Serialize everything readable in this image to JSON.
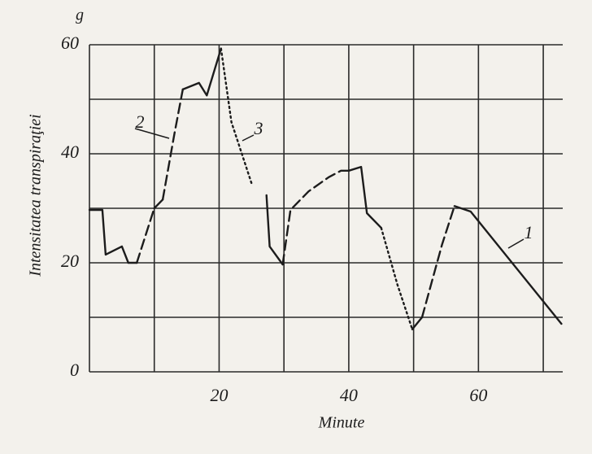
{
  "chart_data": {
    "type": "line",
    "y_unit": "g",
    "y_label": "Intensitatea transpiraţiei",
    "x_label": "Minute",
    "xlim": [
      0,
      73
    ],
    "ylim": [
      0,
      60
    ],
    "xticks": [
      20,
      40,
      60
    ],
    "yticks": [
      0,
      20,
      40,
      60
    ],
    "xgrid": [
      0,
      10,
      20,
      30,
      40,
      50,
      60,
      70
    ],
    "ygrid": [
      0,
      10,
      20,
      30,
      40,
      50,
      60
    ],
    "series": [
      {
        "name": "1",
        "color": "#1c1c1c",
        "dash": "solid",
        "x": [
          0,
          2,
          2.5,
          5,
          6,
          7.3,
          null,
          10,
          11.3,
          null,
          14.4,
          16.9,
          18.1,
          20.3,
          null,
          27.3,
          27.8,
          29.8,
          null,
          40,
          41.9,
          42.8,
          45,
          null,
          49.8,
          51.3,
          null,
          56.3,
          58.8,
          72.8
        ],
        "values": [
          29.7,
          29.7,
          21.5,
          23,
          20,
          20,
          null,
          30,
          31.6,
          null,
          51.8,
          53,
          50.7,
          59.3,
          null,
          32.4,
          23,
          19.7,
          null,
          36.9,
          37.6,
          29.1,
          26.4,
          null,
          7.8,
          10,
          null,
          30.4,
          29.4,
          8.8
        ]
      },
      {
        "name": "2",
        "color": "#1c1c1c",
        "dash": "dashed",
        "x": [
          7.3,
          10,
          null,
          11.3,
          13.1,
          14.4,
          null,
          29.8,
          31,
          33.8,
          36.9,
          38.8,
          40,
          null,
          51.3,
          54.4,
          56.3
        ],
        "values": [
          20,
          30,
          null,
          31.6,
          43.6,
          51.8,
          null,
          19.7,
          29.7,
          33.1,
          35.7,
          36.9,
          36.9,
          null,
          10,
          23.4,
          30.4
        ]
      },
      {
        "name": "3",
        "color": "#1c1c1c",
        "dash": "dotted",
        "x": [
          20.3,
          21.9,
          25,
          null,
          45,
          47.5,
          49.8
        ],
        "values": [
          59.3,
          45.8,
          34.6,
          null,
          26.4,
          16,
          7.8
        ]
      }
    ]
  }
}
